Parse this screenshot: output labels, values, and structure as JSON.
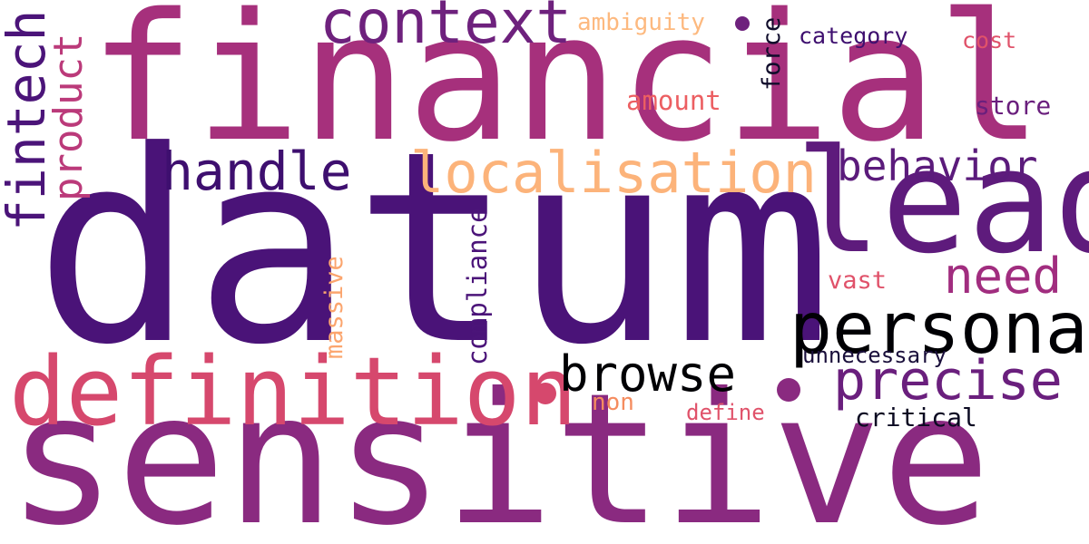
{
  "words": [
    {
      "text": "datum",
      "color": "#4a1378"
    },
    {
      "text": "financial",
      "color": "#a6307c"
    },
    {
      "text": "sensitive",
      "color": "#8a2a80"
    },
    {
      "text": "lead",
      "color": "#5e1b7c"
    },
    {
      "text": "definition",
      "color": "#d6486d"
    },
    {
      "text": "personal",
      "color": "#000004"
    },
    {
      "text": "context",
      "color": "#6e217d"
    },
    {
      "text": "localisation",
      "color": "#fcb37a"
    },
    {
      "text": "handle",
      "color": "#3e0f6f"
    },
    {
      "text": "behavior",
      "color": "#5b1b7b"
    },
    {
      "text": "need",
      "color": "#a12d7f"
    },
    {
      "text": "browse",
      "color": "#000004"
    },
    {
      "text": "precise",
      "color": "#6a1f7d"
    },
    {
      "text": "fintech",
      "color": "#4b1479"
    },
    {
      "text": "product",
      "color": "#bb3a7a"
    },
    {
      "text": "compliance",
      "color": "#4b1479"
    },
    {
      "text": "massive",
      "color": "#fba56e"
    },
    {
      "text": "ambiguity",
      "color": "#fdb97f"
    },
    {
      "text": "force",
      "color": "#100c2b"
    },
    {
      "text": "category",
      "color": "#3e0f6f"
    },
    {
      "text": "cost",
      "color": "#e0526a"
    },
    {
      "text": "amount",
      "color": "#ec5f62"
    },
    {
      "text": "store",
      "color": "#6a1f7d"
    },
    {
      "text": "vast",
      "color": "#e0526a"
    },
    {
      "text": "unnecessary",
      "color": "#1a0f3b"
    },
    {
      "text": "non",
      "color": "#f58c5f"
    },
    {
      "text": "define",
      "color": "#e0526a"
    },
    {
      "text": "critical",
      "color": "#0b0a22"
    }
  ]
}
